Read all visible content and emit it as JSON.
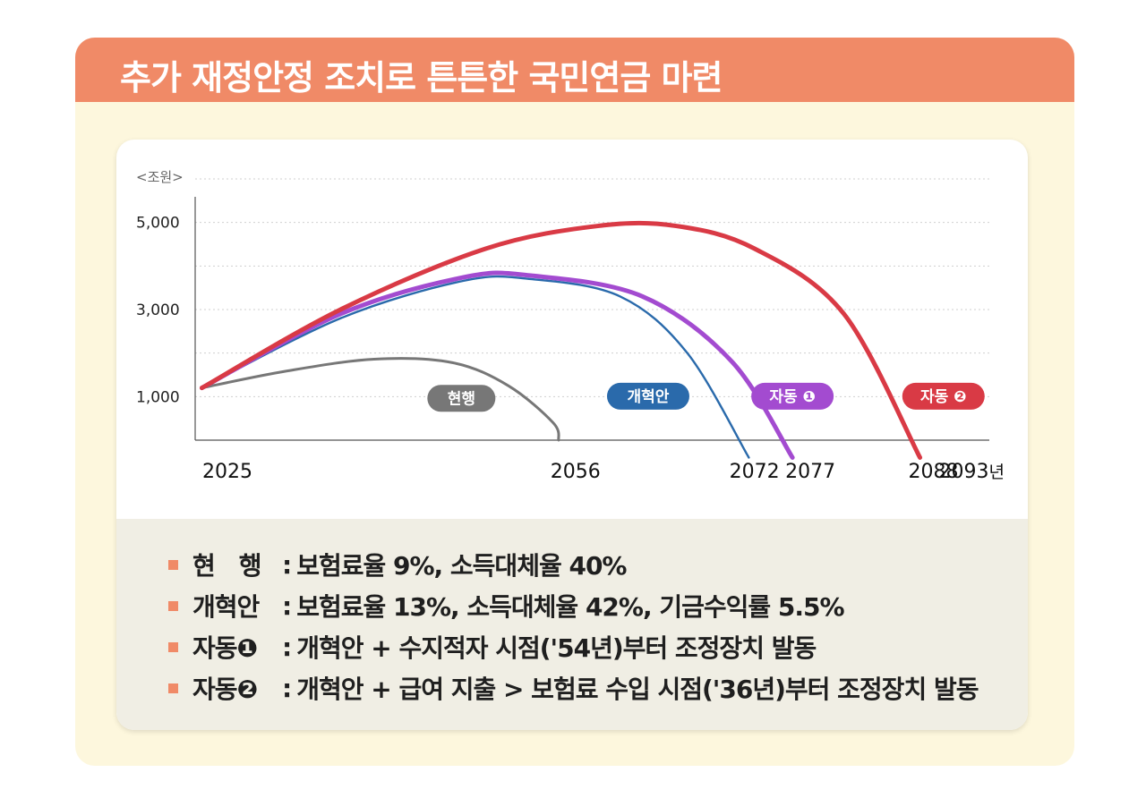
{
  "title": "추가 재정안정 조치로 튼튼한 국민연금 마련",
  "colors": {
    "header": "#f08a67",
    "current": "#777777",
    "reform": "#2a6aab",
    "auto1": "#a34bd0",
    "auto2": "#d93a45",
    "bullet": "#f08a67"
  },
  "chart_data": {
    "type": "line",
    "unit_label": "<조원>",
    "x_unit": "년",
    "xlim": [
      2022,
      2093
    ],
    "ylim": [
      0,
      6000
    ],
    "y_ticks": [
      1000,
      3000,
      5000
    ],
    "y_tick_labels": [
      "1,000",
      "3,000",
      "5,000"
    ],
    "x_tick_labels": [
      {
        "x": 2025,
        "label": "2025"
      },
      {
        "x": 2056,
        "label": "2056"
      },
      {
        "x": 2072,
        "label": "2072"
      },
      {
        "x": 2077,
        "label": "2077"
      },
      {
        "x": 2088,
        "label": "2088"
      },
      {
        "x": 2093,
        "label": "2093"
      }
    ],
    "grid": "horizontal-dotted",
    "series": [
      {
        "name": "현행",
        "color_key": "current",
        "label_at": [
          2045.8,
          960
        ],
        "points": [
          [
            2022.6,
            1200
          ],
          [
            2030,
            1580
          ],
          [
            2038,
            1860
          ],
          [
            2045,
            1780
          ],
          [
            2050,
            1250
          ],
          [
            2054,
            400
          ],
          [
            2054.5,
            0
          ]
        ]
      },
      {
        "name": "개혁안",
        "color_key": "reform",
        "label_at": [
          2062.5,
          1010
        ],
        "points": [
          [
            2022.6,
            1200
          ],
          [
            2035,
            2800
          ],
          [
            2046,
            3660
          ],
          [
            2052,
            3700
          ],
          [
            2060,
            3300
          ],
          [
            2066,
            2000
          ],
          [
            2071.5,
            -400
          ]
        ]
      },
      {
        "name": "자동 ❶",
        "color_key": "auto1",
        "label_at": [
          2075.4,
          1010
        ],
        "points": [
          [
            2022.6,
            1200
          ],
          [
            2035,
            2900
          ],
          [
            2046,
            3740
          ],
          [
            2052,
            3780
          ],
          [
            2062,
            3300
          ],
          [
            2070,
            1800
          ],
          [
            2075.4,
            -400
          ]
        ]
      },
      {
        "name": "자동 ❷",
        "color_key": "auto2",
        "label_at": [
          2088.9,
          1010
        ],
        "points": [
          [
            2022.6,
            1200
          ],
          [
            2035,
            3000
          ],
          [
            2048,
            4400
          ],
          [
            2058,
            4920
          ],
          [
            2065,
            4920
          ],
          [
            2072,
            4400
          ],
          [
            2080,
            2900
          ],
          [
            2086.8,
            -400
          ]
        ]
      }
    ]
  },
  "legend": [
    {
      "name": "현　행",
      "sep": ":",
      "desc": "보험료율 9%, 소득대체율 40%"
    },
    {
      "name": "개혁안",
      "sep": ":",
      "desc": "보험료율 13%, 소득대체율 42%, 기금수익률 5.5%"
    },
    {
      "name": "자동❶",
      "sep": ":",
      "desc": "개혁안 + 수지적자 시점('54년)부터 조정장치 발동"
    },
    {
      "name": "자동❷",
      "sep": ":",
      "desc": "개혁안 + 급여 지출 > 보험료 수입 시점('36년)부터 조정장치 발동"
    }
  ]
}
